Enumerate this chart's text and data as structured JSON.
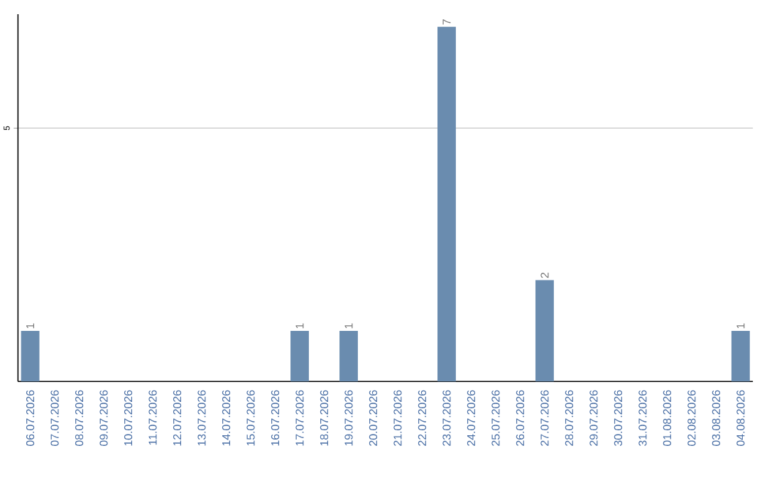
{
  "chart_data": {
    "type": "bar",
    "categories": [
      "06.07.2026",
      "07.07.2026",
      "08.07.2026",
      "09.07.2026",
      "10.07.2026",
      "11.07.2026",
      "12.07.2026",
      "13.07.2026",
      "14.07.2026",
      "15.07.2026",
      "16.07.2026",
      "17.07.2026",
      "18.07.2026",
      "19.07.2026",
      "20.07.2026",
      "21.07.2026",
      "22.07.2026",
      "23.07.2026",
      "24.07.2026",
      "25.07.2026",
      "26.07.2026",
      "27.07.2026",
      "28.07.2026",
      "29.07.2026",
      "30.07.2026",
      "31.07.2026",
      "01.08.2026",
      "02.08.2026",
      "03.08.2026",
      "04.08.2026"
    ],
    "values": [
      1,
      0,
      0,
      0,
      0,
      0,
      0,
      0,
      0,
      0,
      0,
      1,
      0,
      1,
      0,
      0,
      0,
      7,
      0,
      0,
      0,
      2,
      0,
      0,
      0,
      0,
      0,
      0,
      0,
      1
    ],
    "color": "#6a8caf",
    "value_labels": [
      "1",
      null,
      null,
      null,
      null,
      null,
      null,
      null,
      null,
      null,
      null,
      "1",
      null,
      "1",
      null,
      null,
      null,
      "7",
      null,
      null,
      null,
      "2",
      null,
      null,
      null,
      null,
      null,
      null,
      null,
      "1"
    ],
    "ylim": [
      0,
      7.25
    ],
    "yticks": [
      5
    ],
    "grid": "y"
  }
}
